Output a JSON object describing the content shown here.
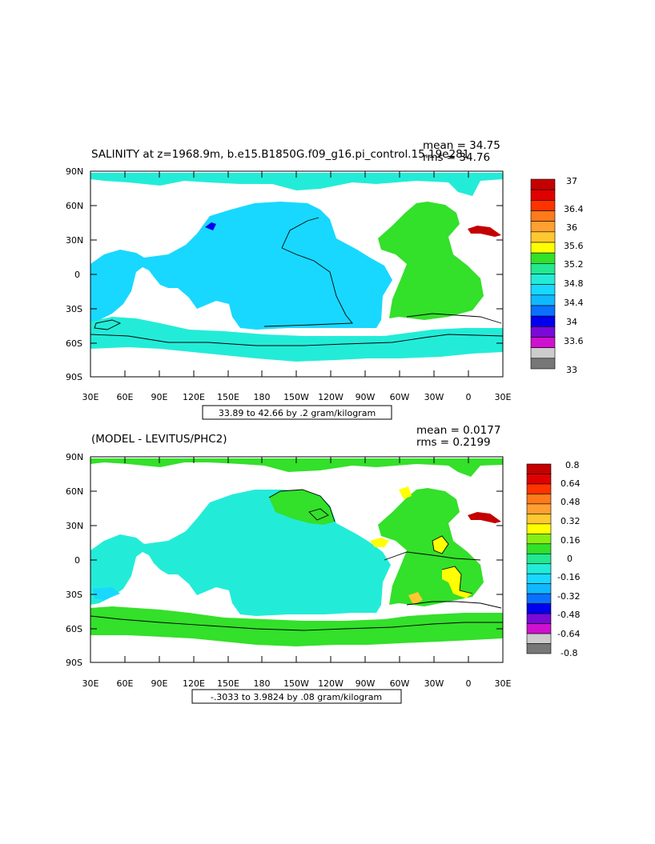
{
  "maps": [
    {
      "title": "SALINITY at z=1968.9m, b.e15.B1850G.f09_g16.pi_control.15.19e281",
      "mean_label": "mean = 34.75",
      "rms_label": "rms = 34.76",
      "range_label": "33.89 to 42.66 by .2 gram/kilogram",
      "y_ticks": [
        "90N",
        "60N",
        "30N",
        "0",
        "30S",
        "60S",
        "90S"
      ],
      "x_ticks": [
        "30E",
        "60E",
        "90E",
        "120E",
        "150E",
        "180",
        "150W",
        "120W",
        "90W",
        "60W",
        "30W",
        "0",
        "30E"
      ],
      "colorbar_labels": [
        "37",
        "36.4",
        "36",
        "35.6",
        "35.2",
        "34.8",
        "34.4",
        "34",
        "33.6",
        "33"
      ],
      "colorbar_colors": [
        "#c40000",
        "#e00000",
        "#ff3300",
        "#ff7a1a",
        "#ffa030",
        "#ffc830",
        "#ffff00",
        "#33e02a",
        "#22e890",
        "#22ecd8",
        "#18d8ff",
        "#10b8ff",
        "#0a70ff",
        "#0000ee",
        "#7a0ad8",
        "#d010d0",
        "#cccccc",
        "#777777"
      ]
    },
    {
      "title": "(MODEL - LEVITUS/PHC2)",
      "mean_label": "mean = 0.0177",
      "rms_label": "rms = 0.2199",
      "range_label": "-.3033 to 3.9824 by .08 gram/kilogram",
      "y_ticks": [
        "90N",
        "60N",
        "30N",
        "0",
        "30S",
        "60S",
        "90S"
      ],
      "x_ticks": [
        "30E",
        "60E",
        "90E",
        "120E",
        "150E",
        "180",
        "150W",
        "120W",
        "90W",
        "60W",
        "30W",
        "0",
        "30E"
      ],
      "colorbar_labels": [
        "0.8",
        "0.64",
        "0.48",
        "0.32",
        "0.16",
        "0",
        "-0.16",
        "-0.32",
        "-0.48",
        "-0.64",
        "-0.8"
      ],
      "colorbar_colors": [
        "#c40000",
        "#e00000",
        "#ff3300",
        "#ff7a1a",
        "#ffa030",
        "#ffc830",
        "#ffff00",
        "#88ee11",
        "#33e02a",
        "#22e890",
        "#22ecd8",
        "#18d8ff",
        "#10b8ff",
        "#0a70ff",
        "#0000ee",
        "#7a0ad8",
        "#d010d0",
        "#cccccc",
        "#777777"
      ]
    }
  ]
}
